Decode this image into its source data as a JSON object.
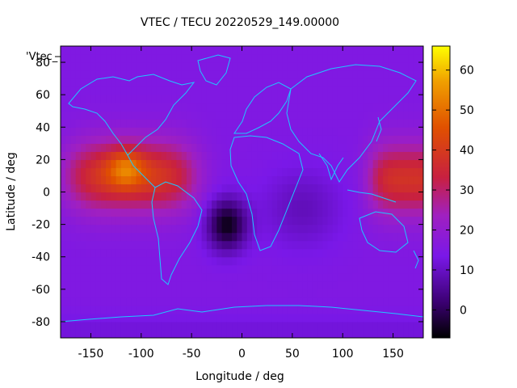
{
  "chart_data": {
    "type": "heatmap",
    "title": "VTEC / TECU 20220529_149.00000",
    "xlabel": "Longitude / deg",
    "ylabel": "Latitude / deg",
    "legend_key": "'Vtec_",
    "xlim": [
      -180,
      180
    ],
    "ylim": [
      -90,
      90
    ],
    "x_ticks": [
      -150,
      -100,
      -50,
      0,
      50,
      100,
      150
    ],
    "y_ticks": [
      -80,
      -60,
      -40,
      -20,
      0,
      20,
      40,
      60,
      80
    ],
    "colorbar": {
      "range": [
        -7,
        66
      ],
      "ticks": [
        0,
        10,
        20,
        30,
        40,
        50,
        60
      ],
      "colormap": "gnuplot-hot (black-purple-red-orange-yellow)"
    },
    "grid": false,
    "description": "Global vertical total electron content map with coastline overlay",
    "features": [
      {
        "name": "equatorial-peak-americas",
        "lon_range": [
          -180,
          -30
        ],
        "lat_range": [
          -20,
          40
        ],
        "peak_value": 55,
        "peak_lon": -115,
        "peak_lat": 15
      },
      {
        "name": "equatorial-band-west-pacific",
        "lon_range": [
          120,
          180
        ],
        "lat_range": [
          -20,
          35
        ],
        "typical_value": 38
      },
      {
        "name": "south-atlantic-low",
        "lon": -15,
        "lat": -20,
        "min_value": -5
      },
      {
        "name": "background",
        "typical_value": 15
      }
    ]
  }
}
